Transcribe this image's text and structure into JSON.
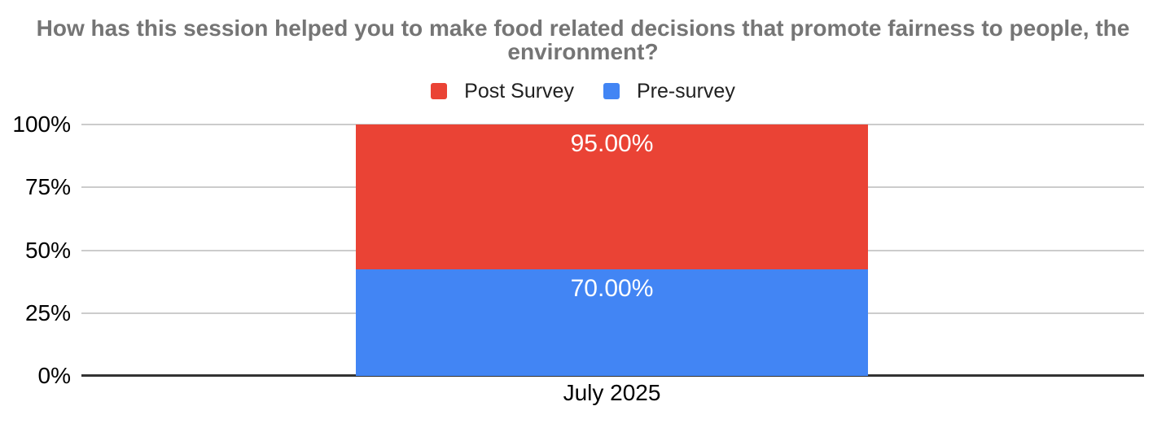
{
  "chart_data": {
    "type": "bar",
    "subtype": "stacked-percent-column",
    "title": "How has this session helped you to make food related decisions that promote fairness to people, the environment?",
    "categories": [
      "July 2025"
    ],
    "series": [
      {
        "name": "Post Survey",
        "color": "#EA4335",
        "values": [
          95.0
        ],
        "data_labels": [
          "95.00%"
        ]
      },
      {
        "name": "Pre-survey",
        "color": "#4285F4",
        "values": [
          70.0
        ],
        "data_labels": [
          "70.00%"
        ]
      }
    ],
    "xlabel": "",
    "ylabel": "",
    "y_axis": {
      "tick_labels": [
        "100%",
        "75%",
        "50%",
        "25%",
        "0%"
      ],
      "tick_values": [
        100,
        75,
        50,
        25,
        0
      ],
      "min": 0,
      "max": 100
    },
    "legend_position": "top",
    "grid": true,
    "style_colors": {
      "background": "#ffffff",
      "title_text": "#757575",
      "legend_text": "#212121",
      "axis_text": "#000000",
      "gridline": "#cccccc",
      "baseline": "#333333",
      "data_label_text": "#ffffff"
    }
  }
}
